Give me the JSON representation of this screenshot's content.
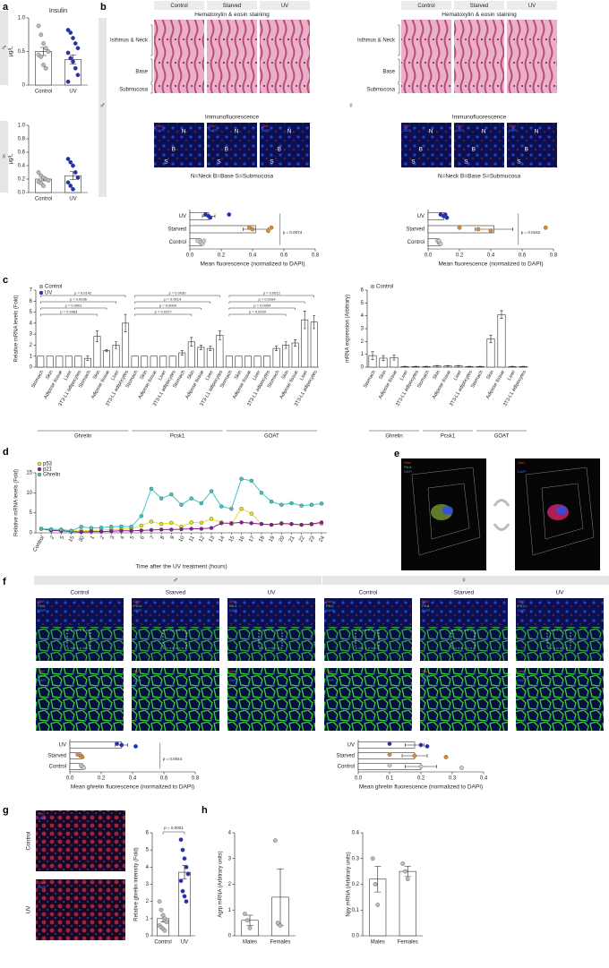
{
  "panel_labels": [
    "a",
    "b",
    "c",
    "d",
    "e",
    "f",
    "g",
    "h"
  ],
  "sex": {
    "male": "♂",
    "female": "♀"
  },
  "b": {
    "conditions": [
      "Control",
      "Starved",
      "UV"
    ],
    "he": "Hematoxylin & eosin staining",
    "if": "Immunofluorescence",
    "regions": [
      "Isthmus & Neck",
      "Base",
      "Submucosa"
    ],
    "legend": "N=Neck  B=Base  S=Submucosa",
    "region_letters": [
      "N",
      "B",
      "S"
    ],
    "channels": [
      "Ghrl",
      "DAPI"
    ],
    "channel_colors": [
      "#ff3b3b",
      "#4a6bff"
    ]
  },
  "e": {
    "channels": [
      "Ghrl",
      "Plin1",
      "DAPI"
    ],
    "channel_colors": [
      "#ff3b3b",
      "#3ccf3c",
      "#4a6bff"
    ]
  },
  "f": {
    "conditions": [
      "Control",
      "Starved",
      "UV"
    ],
    "channels": [
      "Ghrl",
      "Plin1",
      "DAPI"
    ],
    "channel_colors": [
      "#ff3b3b",
      "#3ccf3c",
      "#4a6bff"
    ]
  },
  "g": {
    "conditions": [
      "Control",
      "UV"
    ]
  },
  "chart_data": [
    {
      "type": "bar",
      "title": "Insulin",
      "ylabel": "µg/L",
      "categories": [
        "Control",
        "UV"
      ],
      "values": [
        0.5,
        0.38
      ],
      "errors": [
        0.06,
        0.07
      ],
      "points": [
        [
          0.88,
          0.75,
          0.62,
          0.55,
          0.5,
          0.45,
          0.42,
          0.3,
          0.25
        ],
        [
          0.82,
          0.78,
          0.7,
          0.62,
          0.55,
          0.48,
          0.4,
          0.35,
          0.25,
          0.15,
          0.05
        ]
      ],
      "colors": [
        "#bbbbbb",
        "#1f2fbf"
      ],
      "ylim": [
        0,
        1
      ],
      "yticks": [
        0,
        0.5,
        {
          "value": 1,
          "label": "1.0"
        }
      ]
    },
    {
      "type": "bar",
      "ylabel": "µg/L",
      "categories": [
        "Control",
        "UV"
      ],
      "values": [
        0.2,
        0.25
      ],
      "errors": [
        0.025,
        0.06
      ],
      "points": [
        [
          0.3,
          0.25,
          0.22,
          0.2,
          0.18,
          0.16,
          0.14,
          0.1
        ],
        [
          0.5,
          0.45,
          0.4,
          0.3,
          0.22,
          0.15,
          0.1,
          0.05
        ]
      ],
      "colors": [
        "#bbbbbb",
        "#1f2fbf"
      ],
      "ylim": [
        0,
        1
      ],
      "yticks": [
        {
          "value": 0,
          "label": "0.0"
        },
        0.2,
        0.4,
        0.6,
        0.8,
        {
          "value": 1,
          "label": "1.0"
        }
      ]
    },
    {
      "type": "hbar",
      "categories": [
        "UV",
        "Starved",
        "Control"
      ],
      "values": [
        0.12,
        0.42,
        0.07
      ],
      "errors": [
        0.04,
        0.08,
        0.01
      ],
      "points": [
        [
          0.1,
          0.12,
          0.13,
          0.25
        ],
        [
          0.38,
          0.4,
          0.5,
          0.52
        ],
        [
          0.05,
          0.07,
          0.08,
          0.09
        ]
      ],
      "colors": [
        "#1f2fbf",
        "#e08a2e",
        "#cccccc"
      ],
      "xlim": [
        0,
        0.8
      ],
      "xticks": [
        {
          "value": 0,
          "label": "0.0"
        },
        0.2,
        0.4,
        0.6,
        0.8
      ],
      "xlabel": "Mean fluorescence (normalized to DAPI)",
      "annotation": "p = 0.0074"
    },
    {
      "type": "hbar",
      "categories": [
        "UV",
        "Starved",
        "Control"
      ],
      "values": [
        0.1,
        0.42,
        0.07
      ],
      "errors": [
        0.01,
        0.12,
        0.01
      ],
      "points": [
        [
          0.08,
          0.1,
          0.12,
          0.11
        ],
        [
          0.2,
          0.32,
          0.4,
          0.75
        ],
        [
          0.06,
          0.07,
          0.08,
          0.07
        ]
      ],
      "colors": [
        "#1f2fbf",
        "#e08a2e",
        "#cccccc"
      ],
      "xlim": [
        0,
        0.8
      ],
      "xticks": [
        {
          "value": 0,
          "label": "0.0"
        },
        0.2,
        0.4,
        0.6,
        0.8
      ],
      "xlabel": "Mean fluorescence (normalized to DAPI)",
      "annotation": "p = 0.0162"
    },
    {
      "type": "bar",
      "ylabel": "Relative mRNA levels (Fold)",
      "categories": [
        "Stomach",
        "Skin",
        "Adipose tissue",
        "Liver",
        "3T3-L1 adipocytes",
        "Stomach",
        "Skin",
        "Adipose tissue",
        "Liver",
        "3T3-L1 adipocytes",
        "Stomach",
        "Skin",
        "Adipose tissue",
        "Liver",
        "3T3-L1 adipocytes",
        "Stomach",
        "Skin",
        "Adipose tissue",
        "Liver",
        "3T3-L1 adipocytes",
        "Stomach",
        "Skin",
        "Adipose tissue",
        "Liver",
        "3T3-L1 adipocytes",
        "Stomach",
        "Skin",
        "Adipose tissue",
        "Liver",
        "3T3-L1 adipocytes"
      ],
      "groups": [
        "Ghrelin",
        "Pcsk1",
        "GOAT"
      ],
      "series": [
        {
          "name": "Control",
          "color": "#bbbbbb",
          "values": [
            1,
            1,
            1,
            1,
            1,
            null,
            null,
            null,
            null,
            null,
            1,
            1,
            1,
            1,
            1,
            null,
            null,
            null,
            null,
            null,
            1,
            1,
            1,
            1,
            1,
            null,
            null,
            null,
            null,
            null
          ]
        },
        {
          "name": "UV",
          "color": "#1f2fbf",
          "values": [
            null,
            null,
            null,
            null,
            null,
            0.8,
            2.8,
            1.5,
            2.0,
            4.0,
            null,
            null,
            null,
            null,
            null,
            1.3,
            2.3,
            1.8,
            1.7,
            2.9,
            null,
            null,
            null,
            null,
            null,
            1.7,
            2.0,
            2.2,
            4.3,
            4.1
          ],
          "errors": [
            null,
            null,
            null,
            null,
            null,
            0.2,
            0.5,
            0.1,
            0.3,
            0.8,
            null,
            null,
            null,
            null,
            null,
            0.2,
            0.4,
            0.2,
            0.2,
            0.4,
            null,
            null,
            null,
            null,
            null,
            0.2,
            0.3,
            0.3,
            0.8,
            0.6
          ]
        }
      ],
      "annotations": [
        "p = 0.0142",
        "p = 0.0036",
        "p = 0.0001",
        "p = 0.0083",
        "p = 0.0030",
        "p = 0.0014",
        "p = 0.0004",
        "p = 0.0227",
        "p = 0.0012",
        "p = 0.0164",
        "p = 0.0054",
        "p = 0.0029"
      ],
      "ylim": [
        0,
        7
      ],
      "yticks": [
        0,
        1,
        2,
        3,
        4,
        5,
        6,
        7
      ]
    },
    {
      "type": "bar",
      "ylabel": "mRNA expression (Arbitrary)",
      "categories": [
        "Stomach",
        "Skin",
        "Adipose tissue",
        "Liver",
        "3T3-L1 adipocytes",
        "Stomach",
        "Skin",
        "Adipose tissue",
        "Liver",
        "3T3-L1 adipocytes",
        "Stomach",
        "Skin",
        "Adipose tissue",
        "Liver",
        "3T3-L1 adipocytes"
      ],
      "groups": [
        "Ghrelin",
        "Pcsk1",
        "GOAT"
      ],
      "series": [
        {
          "name": "Control",
          "color": "#bbbbbb",
          "values": [
            0.9,
            0.7,
            0.75,
            0.05,
            0.05,
            0.05,
            0.1,
            0.1,
            0.1,
            0.05,
            0.05,
            2.2,
            4.1,
            0.05,
            0.05
          ],
          "errors": [
            0.3,
            0.2,
            0.2,
            0.02,
            0.02,
            0.02,
            0.03,
            0.03,
            0.03,
            0.02,
            0.02,
            0.3,
            0.3,
            0.02,
            0.02
          ]
        }
      ],
      "ylim": [
        0,
        6
      ],
      "yticks": [
        0,
        1,
        2,
        3,
        4,
        5,
        6
      ]
    },
    {
      "type": "line",
      "ylabel": "Relative mRNA levels (Fold)",
      "xlabel": "Time after the UV treatment (hours)",
      "categories": [
        "Control",
        "2",
        "5",
        "15",
        "30",
        "1",
        "2",
        "3",
        "4",
        "5",
        "6",
        "7",
        "8",
        "9",
        "10",
        "11",
        "12",
        "13",
        "14",
        "15",
        "16",
        "17",
        "18",
        "19",
        "20",
        "21",
        "22",
        "23",
        "24"
      ],
      "series": [
        {
          "name": "p53",
          "color": "#e8e020",
          "values": [
            1,
            0.8,
            0.8,
            0.5,
            0.5,
            0.6,
            0.7,
            0.8,
            0.9,
            1,
            1.8,
            2.8,
            2.2,
            2.5,
            1.5,
            2.6,
            2.5,
            3.5,
            2.6,
            2.2,
            6,
            4.8,
            2.2,
            2,
            2.4,
            2.2,
            2,
            2.1,
            2.3
          ]
        },
        {
          "name": "p21",
          "color": "#8b1a9a",
          "values": [
            1,
            0.6,
            0.5,
            0.3,
            0.2,
            0.3,
            0.3,
            0.4,
            0.5,
            0.5,
            0.6,
            0.7,
            0.8,
            0.8,
            0.9,
            1,
            1,
            1.2,
            2.4,
            2.4,
            2.6,
            2.4,
            2.2,
            2,
            2.3,
            2.2,
            2,
            2.2,
            2.6
          ]
        },
        {
          "name": "Ghrelin",
          "color": "#3cc8c8",
          "values": [
            1,
            0.9,
            0.8,
            0.5,
            1.5,
            1.2,
            1.3,
            1.5,
            1.6,
            1.5,
            4.2,
            11,
            8.6,
            9.6,
            7,
            8.6,
            7.4,
            10.4,
            6.6,
            6,
            13.5,
            13,
            10,
            7.8,
            7,
            7.4,
            6.8,
            7,
            7.3
          ]
        }
      ],
      "ylim": [
        0,
        15
      ],
      "yticks": [
        0,
        5,
        10,
        15
      ]
    },
    {
      "type": "hbar",
      "categories": [
        "UV",
        "Starved",
        "Control"
      ],
      "values": [
        0.33,
        0.07,
        0.08
      ],
      "errors": [
        0.04,
        0.01,
        0.01
      ],
      "points": [
        [
          0.3,
          0.33,
          0.42
        ],
        [
          0.05,
          0.07,
          0.08
        ],
        [
          0.07,
          0.08,
          0.09
        ]
      ],
      "colors": [
        "#1f2fbf",
        "#e08a2e",
        "#cccccc"
      ],
      "xlim": [
        0,
        0.8
      ],
      "xticks": [
        {
          "value": 0,
          "label": "0.0"
        },
        0.2,
        0.4,
        0.6,
        0.8
      ],
      "xlabel": "Mean ghrelin fluorescence (normalized to DAPI)",
      "annotation": "p = 0.0044"
    },
    {
      "type": "hbar",
      "categories": [
        "UV",
        "Starved",
        "Control"
      ],
      "values": [
        0.18,
        0.18,
        0.2
      ],
      "errors": [
        0.03,
        0.04,
        0.05
      ],
      "points": [
        [
          0.1,
          0.2,
          0.22
        ],
        [
          0.1,
          0.18,
          0.28
        ],
        [
          0.1,
          0.2,
          0.33
        ]
      ],
      "colors": [
        "#1f2fbf",
        "#e08a2e",
        "#cccccc"
      ],
      "xlim": [
        0,
        0.4
      ],
      "xticks": [
        {
          "value": 0,
          "label": "0.0"
        },
        0.1,
        0.2,
        0.3,
        0.4
      ],
      "xlabel": "Mean ghrelin fluorescence (normalized to DAPI)"
    },
    {
      "type": "bar",
      "ylabel": "Relative ghrelin intensity (Fold)",
      "categories": [
        "Control",
        "UV"
      ],
      "values": [
        1.0,
        3.7
      ],
      "errors": [
        0.2,
        0.4
      ],
      "points": [
        [
          2,
          1.5,
          1.2,
          1,
          0.8,
          0.6,
          0.5,
          0.4,
          0.3
        ],
        [
          5.6,
          5.0,
          4.5,
          4.0,
          3.6,
          3.2,
          2.6,
          2.3,
          2.0
        ]
      ],
      "colors": [
        "#bbbbbb",
        "#1f2fbf"
      ],
      "annotation": "p = 0.0001",
      "ylim": [
        0,
        6
      ],
      "yticks": [
        0,
        1,
        2,
        3,
        4,
        5,
        6
      ]
    },
    {
      "type": "bar",
      "ylabel": "Agrp mRNA (Arbitrary units)",
      "categories": [
        "Males",
        "Females"
      ],
      "values": [
        0.6,
        1.5
      ],
      "errors": [
        0.2,
        1.1
      ],
      "points": [
        [
          0.85,
          0.6,
          0.3
        ],
        [
          3.7,
          0.5,
          0.4
        ]
      ],
      "colors": [
        "#bbbbbb",
        "#bbbbbb"
      ],
      "ylim": [
        0,
        4
      ],
      "yticks": [
        0,
        1,
        2,
        3,
        4
      ]
    },
    {
      "type": "bar",
      "ylabel": "Npy mRNA (Arbitrary units)",
      "categories": [
        "Males",
        "Females"
      ],
      "values": [
        0.22,
        0.25
      ],
      "errors": [
        0.05,
        0.02
      ],
      "points": [
        [
          0.3,
          0.2,
          0.12
        ],
        [
          0.28,
          0.25,
          0.22
        ]
      ],
      "colors": [
        "#bbbbbb",
        "#bbbbbb"
      ],
      "ylim": [
        0,
        0.4
      ],
      "yticks": [
        {
          "value": 0,
          "label": "0.0"
        },
        0.1,
        0.2,
        0.3,
        0.4
      ]
    }
  ]
}
